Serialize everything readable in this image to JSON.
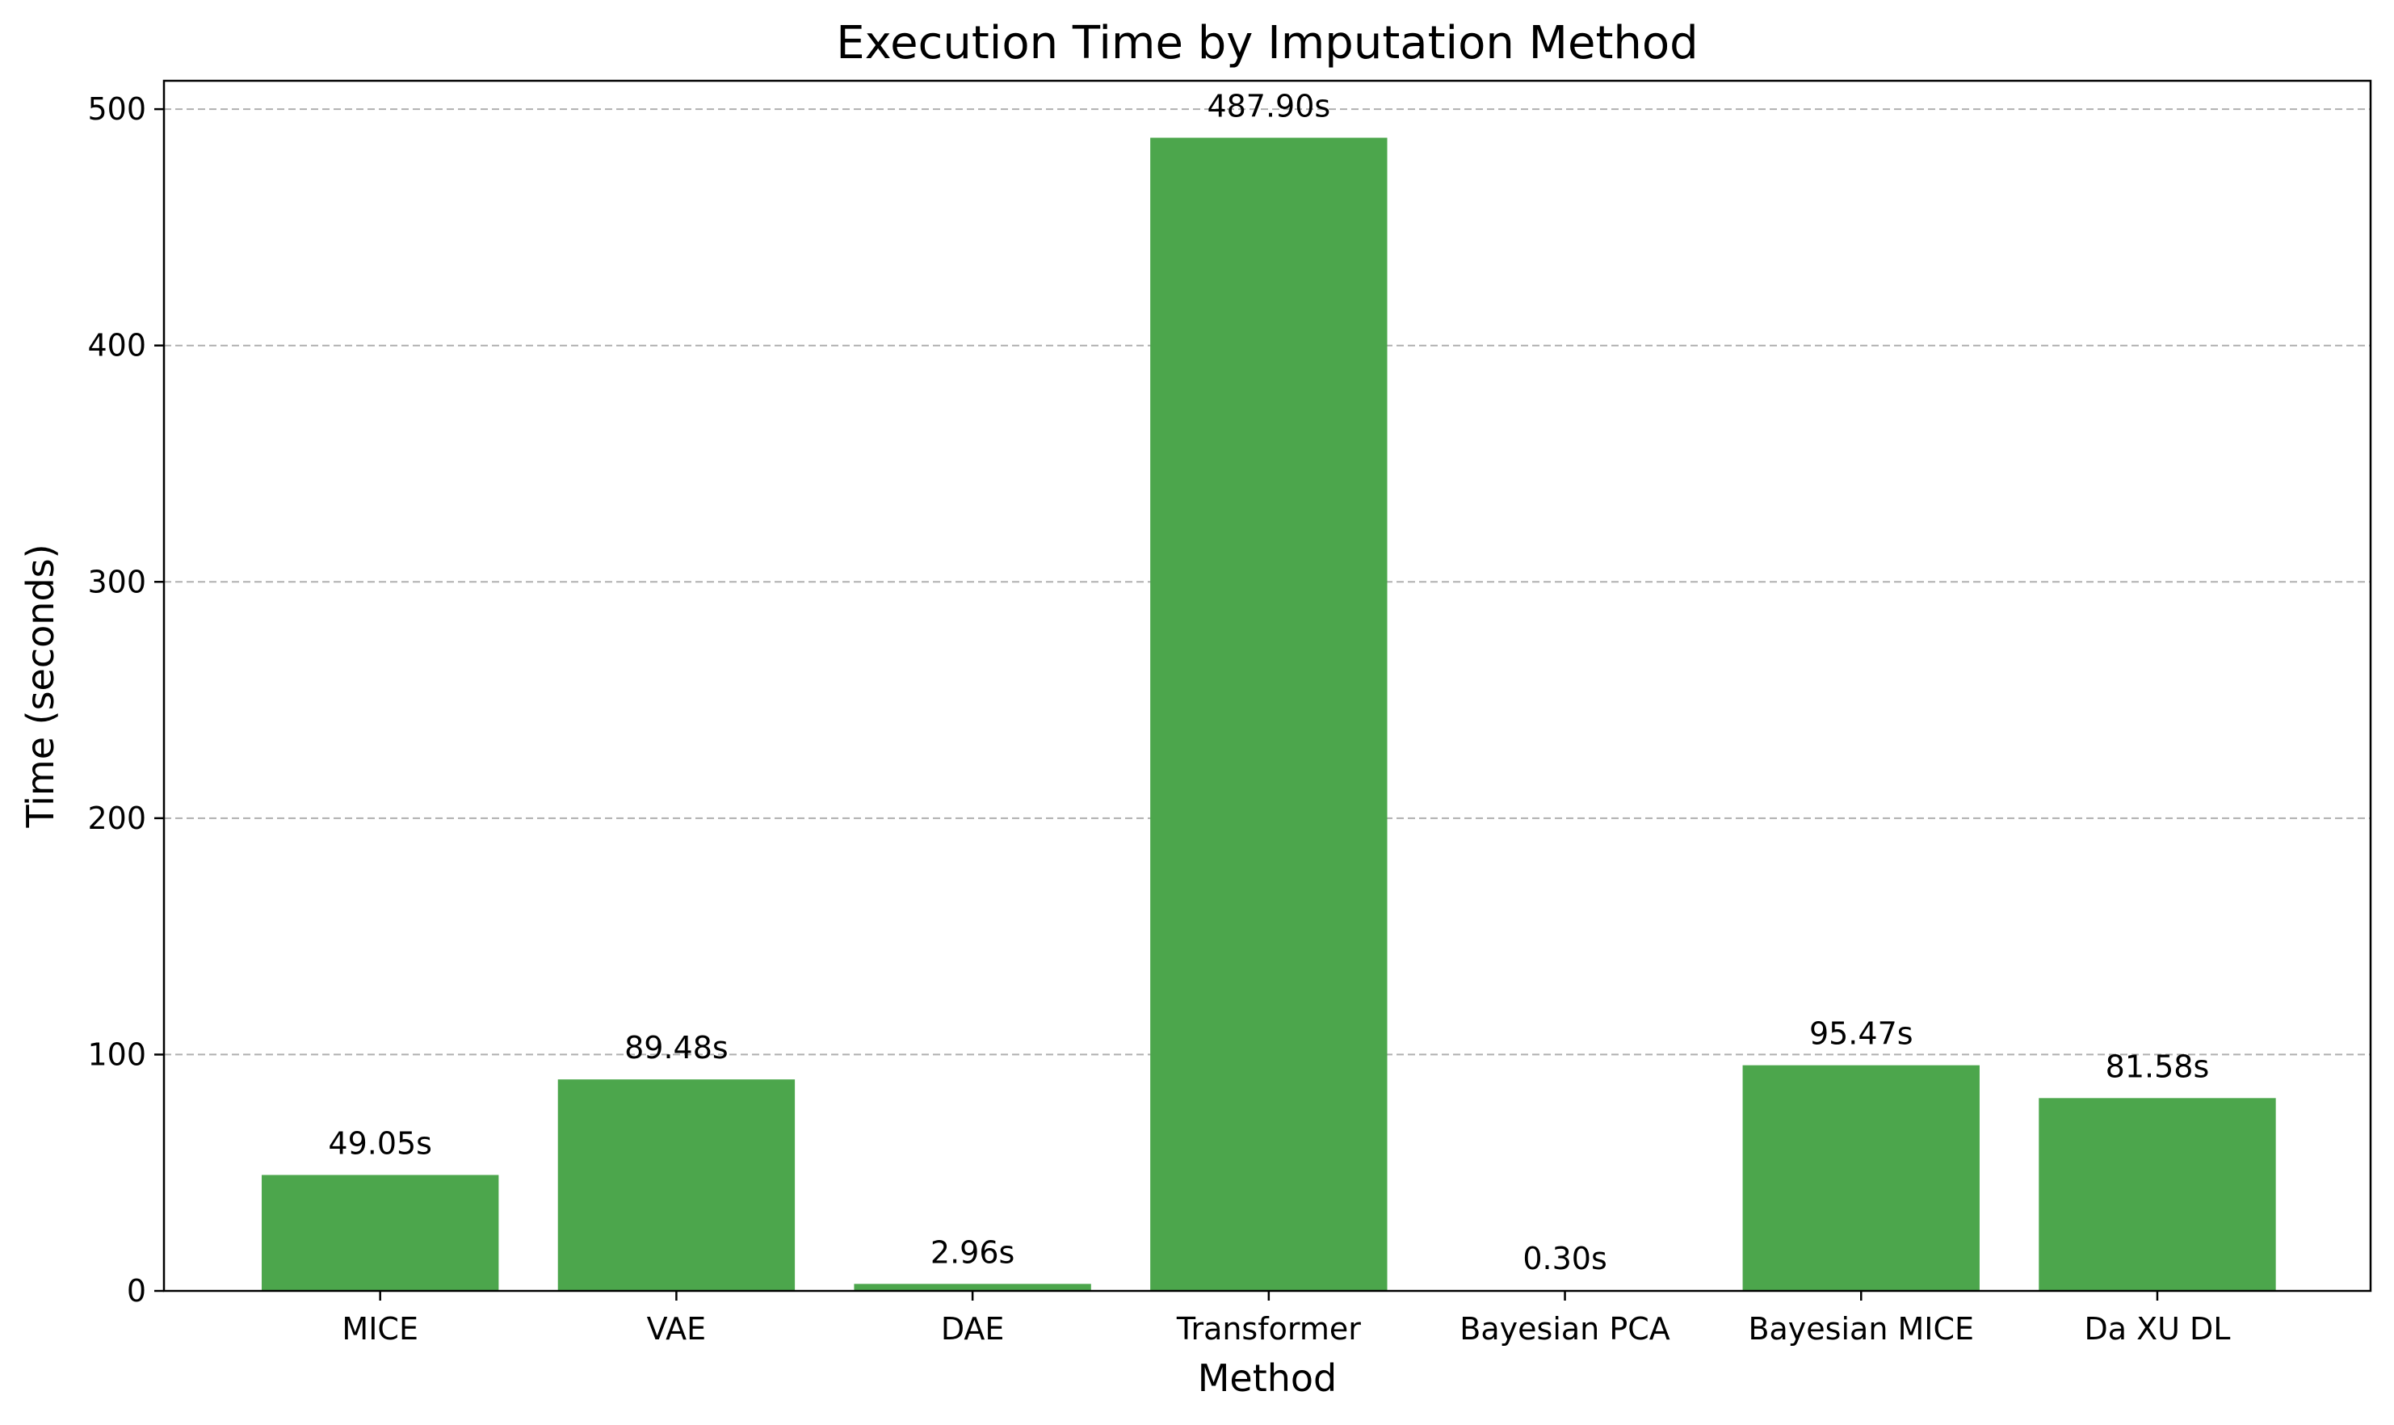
{
  "chart_data": {
    "type": "bar",
    "title": "Execution Time by Imputation Method",
    "xlabel": "Method",
    "ylabel": "Time (seconds)",
    "categories": [
      "MICE",
      "VAE",
      "DAE",
      "Transformer",
      "Bayesian PCA",
      "Bayesian MICE",
      "Da XU DL"
    ],
    "values": [
      49.05,
      89.48,
      2.96,
      487.9,
      0.3,
      95.47,
      81.58
    ],
    "value_labels": [
      "49.05s",
      "89.48s",
      "2.96s",
      "487.90s",
      "0.30s",
      "95.47s",
      "81.58s"
    ],
    "ylim": [
      0,
      512
    ],
    "yticks": [
      0,
      100,
      200,
      300,
      400,
      500
    ],
    "ytick_labels": [
      "0",
      "100",
      "200",
      "300",
      "400",
      "500"
    ],
    "grid": "y-dashed",
    "bar_color": "#4ca64c"
  }
}
